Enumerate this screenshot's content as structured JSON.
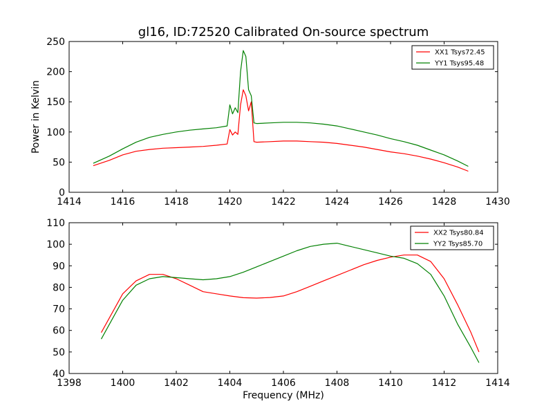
{
  "chart_data": [
    {
      "type": "line",
      "title": "gl16, ID:72520 Calibrated On-source spectrum",
      "xlabel": "",
      "ylabel": "Power in Kelvin",
      "xlim": [
        1414,
        1430
      ],
      "ylim": [
        0,
        250
      ],
      "xticks": [
        "1414",
        "1416",
        "1418",
        "1420",
        "1422",
        "1424",
        "1426",
        "1428",
        "1430"
      ],
      "yticks": [
        "0",
        "50",
        "100",
        "150",
        "200",
        "250"
      ],
      "grid": false,
      "legend_position": "top-right",
      "series": [
        {
          "name": "XX1 Tsys72.45",
          "color": "#ff0000",
          "x": [
            1414.9,
            1415.5,
            1416.0,
            1416.5,
            1417.0,
            1417.5,
            1418.0,
            1418.5,
            1419.0,
            1419.5,
            1419.9,
            1420.0,
            1420.1,
            1420.2,
            1420.3,
            1420.4,
            1420.5,
            1420.6,
            1420.7,
            1420.8,
            1420.9,
            1421.0,
            1421.5,
            1422.0,
            1422.5,
            1423.0,
            1423.5,
            1424.0,
            1424.5,
            1425.0,
            1425.5,
            1426.0,
            1426.5,
            1427.0,
            1427.5,
            1428.0,
            1428.5,
            1428.9
          ],
          "values": [
            44,
            53,
            62,
            68,
            71,
            73,
            74,
            75,
            76,
            78,
            80,
            104,
            95,
            100,
            96,
            145,
            170,
            160,
            135,
            150,
            84,
            83,
            84,
            85,
            85,
            84,
            83,
            81,
            78,
            75,
            71,
            67,
            64,
            60,
            55,
            49,
            42,
            35
          ]
        },
        {
          "name": "YY1 Tsys95.48",
          "color": "#008000",
          "x": [
            1414.9,
            1415.5,
            1416.0,
            1416.5,
            1417.0,
            1417.5,
            1418.0,
            1418.5,
            1419.0,
            1419.5,
            1419.9,
            1420.0,
            1420.1,
            1420.2,
            1420.3,
            1420.4,
            1420.5,
            1420.6,
            1420.7,
            1420.8,
            1420.9,
            1421.0,
            1421.5,
            1422.0,
            1422.5,
            1423.0,
            1423.5,
            1424.0,
            1424.5,
            1425.0,
            1425.5,
            1426.0,
            1426.5,
            1427.0,
            1427.5,
            1428.0,
            1428.5,
            1428.9
          ],
          "values": [
            48,
            60,
            72,
            83,
            91,
            96,
            100,
            103,
            105,
            107,
            110,
            145,
            130,
            140,
            132,
            200,
            235,
            225,
            170,
            160,
            115,
            114,
            115,
            116,
            116,
            115,
            113,
            110,
            105,
            100,
            95,
            89,
            84,
            78,
            70,
            62,
            52,
            43
          ]
        }
      ]
    },
    {
      "type": "line",
      "title": "",
      "xlabel": "Frequency (MHz)",
      "ylabel": "",
      "xlim": [
        1398,
        1414
      ],
      "ylim": [
        40,
        110
      ],
      "xticks": [
        "1398",
        "1400",
        "1402",
        "1404",
        "1406",
        "1408",
        "1410",
        "1412",
        "1414"
      ],
      "yticks": [
        "40",
        "50",
        "60",
        "70",
        "80",
        "90",
        "100",
        "110"
      ],
      "grid": false,
      "legend_position": "top-right",
      "series": [
        {
          "name": "XX2 Tsys80.84",
          "color": "#ff0000",
          "x": [
            1399.2,
            1399.6,
            1400.0,
            1400.5,
            1401.0,
            1401.5,
            1402.0,
            1402.5,
            1403.0,
            1403.5,
            1404.0,
            1404.5,
            1405.0,
            1405.5,
            1406.0,
            1406.5,
            1407.0,
            1407.5,
            1408.0,
            1408.5,
            1409.0,
            1409.5,
            1410.0,
            1410.5,
            1411.0,
            1411.5,
            1412.0,
            1412.5,
            1413.0,
            1413.3
          ],
          "values": [
            59,
            68,
            77,
            83,
            86,
            86,
            84,
            81,
            78,
            77,
            76,
            75.2,
            75,
            75.3,
            76,
            78,
            80.5,
            83,
            85.5,
            88,
            90.5,
            92.5,
            94,
            95,
            95,
            92,
            84,
            72,
            59,
            50
          ]
        },
        {
          "name": "YY2 Tsys85.70",
          "color": "#008000",
          "x": [
            1399.2,
            1399.6,
            1400.0,
            1400.5,
            1401.0,
            1401.5,
            1402.0,
            1402.5,
            1403.0,
            1403.5,
            1404.0,
            1404.5,
            1405.0,
            1405.5,
            1406.0,
            1406.5,
            1407.0,
            1407.5,
            1408.0,
            1408.5,
            1409.0,
            1409.5,
            1410.0,
            1410.5,
            1411.0,
            1411.5,
            1412.0,
            1412.5,
            1413.0,
            1413.3
          ],
          "values": [
            56,
            65,
            74,
            81,
            84,
            85,
            84.5,
            84,
            83.5,
            84,
            85,
            87,
            89.5,
            92,
            94.5,
            97,
            99,
            100,
            100.5,
            99,
            97.5,
            96,
            94.5,
            93.5,
            91,
            86,
            76,
            63,
            52,
            45
          ]
        }
      ]
    }
  ]
}
